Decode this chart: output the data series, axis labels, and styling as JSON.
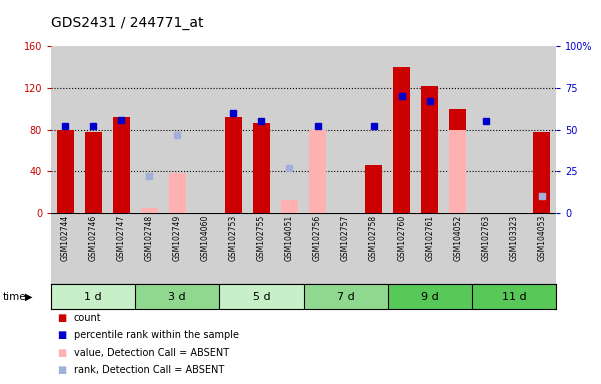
{
  "title": "GDS2431 / 244771_at",
  "samples": [
    "GSM102744",
    "GSM102746",
    "GSM102747",
    "GSM102748",
    "GSM102749",
    "GSM104060",
    "GSM102753",
    "GSM102755",
    "GSM104051",
    "GSM102756",
    "GSM102757",
    "GSM102758",
    "GSM102760",
    "GSM102761",
    "GSM104052",
    "GSM102763",
    "GSM103323",
    "GSM104053"
  ],
  "count_values": [
    80,
    78,
    92,
    null,
    null,
    null,
    92,
    86,
    null,
    null,
    null,
    46,
    140,
    122,
    100,
    null,
    null,
    78
  ],
  "percentile_values": [
    52,
    52,
    56,
    null,
    null,
    null,
    60,
    55,
    null,
    52,
    null,
    52,
    70,
    67,
    null,
    55,
    null,
    null
  ],
  "absent_value_bars": [
    null,
    null,
    null,
    5,
    38,
    null,
    null,
    null,
    13,
    80,
    null,
    null,
    null,
    null,
    80,
    null,
    null,
    null
  ],
  "absent_rank_dots": [
    null,
    null,
    null,
    22,
    47,
    null,
    null,
    null,
    27,
    null,
    null,
    null,
    null,
    null,
    null,
    null,
    null,
    10
  ],
  "time_groups": [
    {
      "label": "1 d",
      "start": 0,
      "end": 3,
      "color": "#c8f0c8"
    },
    {
      "label": "3 d",
      "start": 3,
      "end": 6,
      "color": "#90d890"
    },
    {
      "label": "5 d",
      "start": 6,
      "end": 9,
      "color": "#c8f0c8"
    },
    {
      "label": "7 d",
      "start": 9,
      "end": 12,
      "color": "#90d890"
    },
    {
      "label": "9 d",
      "start": 12,
      "end": 15,
      "color": "#58c858"
    },
    {
      "label": "11 d",
      "start": 15,
      "end": 18,
      "color": "#58c858"
    }
  ],
  "ylim_left": [
    0,
    160
  ],
  "ylim_right": [
    0,
    100
  ],
  "yticks_left": [
    0,
    40,
    80,
    120,
    160
  ],
  "yticks_right": [
    0,
    25,
    50,
    75,
    100
  ],
  "ytick_labels_right": [
    "0",
    "25",
    "50",
    "75",
    "100%"
  ],
  "bar_color_count": "#cc0000",
  "bar_color_absent_value": "#ffb0b0",
  "dot_color_percentile": "#0000cc",
  "dot_color_absent_rank": "#a0b0d8",
  "background_plot": "#e8e8e8",
  "background_sample": "#d0d0d0",
  "grid_color": "black",
  "title_color": "black",
  "left_tick_color": "#cc0000",
  "right_tick_color": "#0000cc"
}
